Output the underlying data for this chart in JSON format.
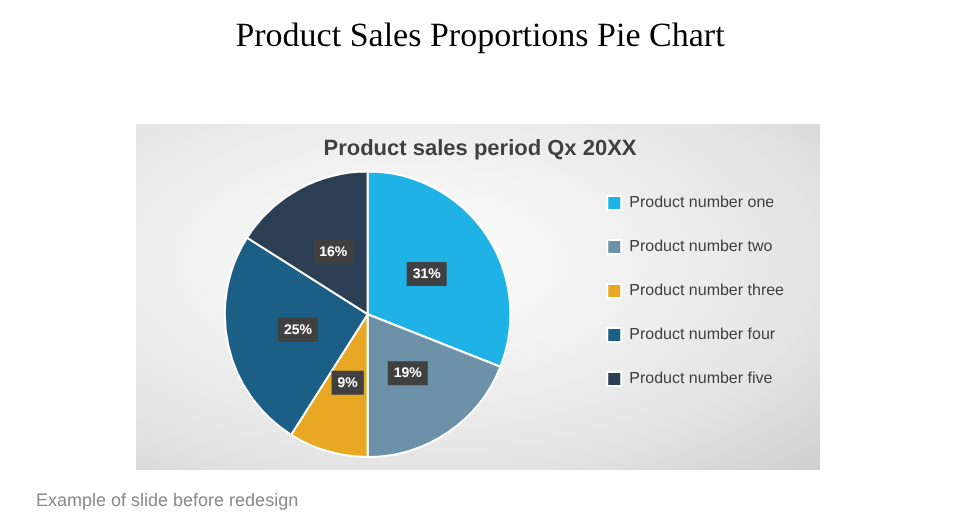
{
  "chart_data": {
    "type": "pie",
    "title": "Product Sales Proportions Pie Chart",
    "subtitle": "Product sales period Qx 20XX",
    "categories": [
      "Product number one",
      "Product number two",
      "Product number three",
      "Product number four",
      "Product number five"
    ],
    "values": [
      31,
      19,
      9,
      25,
      16
    ],
    "value_labels": [
      "31%",
      "19%",
      "9%",
      "25%",
      "16%"
    ],
    "colors": [
      "#1fb2e6",
      "#6e91aa",
      "#e9a823",
      "#1b5f86",
      "#2b3e54"
    ],
    "legend": "right",
    "annotations": [
      "Example of slide before redesign"
    ]
  }
}
